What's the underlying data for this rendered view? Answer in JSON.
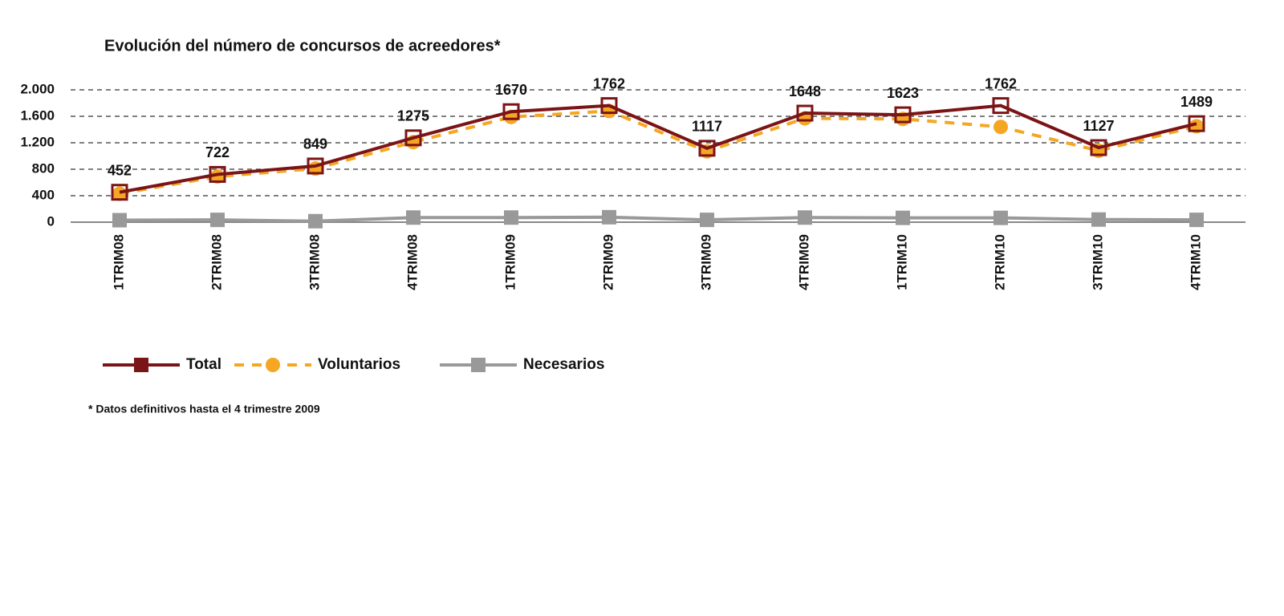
{
  "chart_data": {
    "type": "line",
    "title": "Evolución del número de concursos de acreedores*",
    "categories": [
      "1TRIM08",
      "2TRIM08",
      "3TRIM08",
      "4TRIM08",
      "1TRIM09",
      "2TRIM09",
      "3TRIM09",
      "4TRIM09",
      "1TRIM10",
      "2TRIM10",
      "3TRIM10",
      "4TRIM10"
    ],
    "series": [
      {
        "name": "Total",
        "color": "#7b1416",
        "values": [
          452,
          722,
          849,
          1275,
          1670,
          1762,
          1117,
          1648,
          1623,
          1762,
          1127,
          1489
        ]
      },
      {
        "name": "Voluntarios",
        "color": "#f5a623",
        "values": [
          430,
          690,
          810,
          1210,
          1590,
          1680,
          1070,
          1570,
          1560,
          1440,
          1080,
          1450
        ]
      },
      {
        "name": "Necesarios",
        "color": "#999999",
        "values": [
          30,
          35,
          15,
          70,
          70,
          75,
          35,
          70,
          65,
          65,
          40,
          35
        ]
      }
    ],
    "ylim": [
      0,
      2000
    ],
    "yticks": [
      0,
      400,
      800,
      {
        "value": 1200,
        "label": "1.200"
      },
      {
        "value": 1600,
        "label": "1.600"
      },
      {
        "value": 2000,
        "label": "2.000"
      }
    ],
    "grid": true,
    "legend": "bottom",
    "footnote": "* Datos definitivos hasta el 4 trimestre 2009"
  }
}
